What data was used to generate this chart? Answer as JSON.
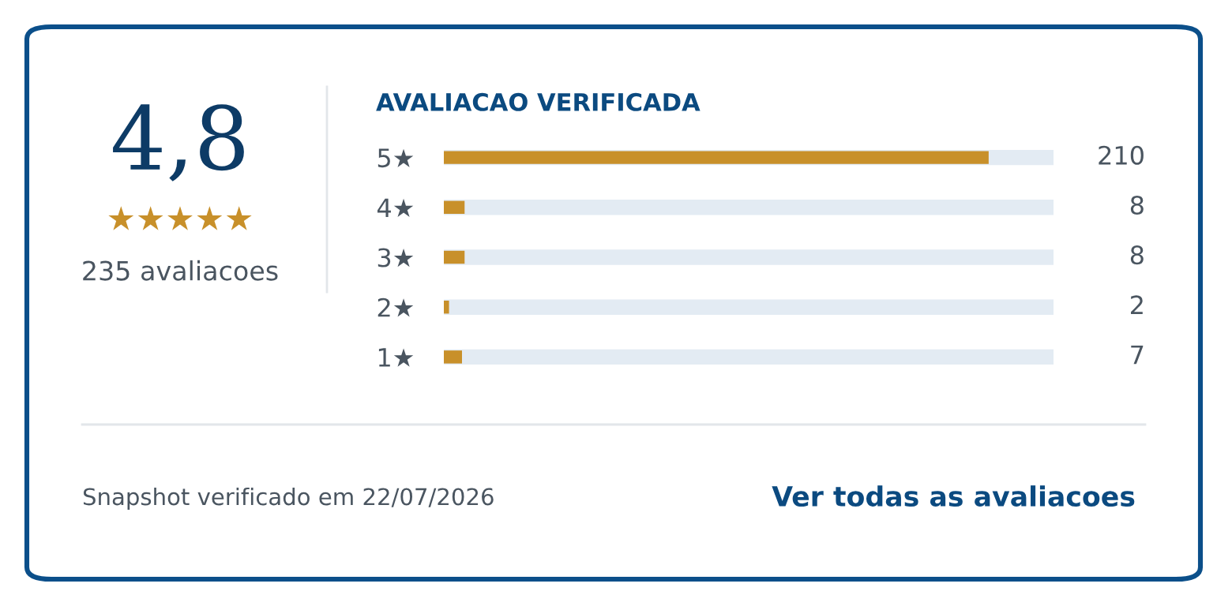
{
  "chart_data": {
    "type": "bar",
    "orientation": "horizontal",
    "title": "AVALIACAO VERIFICADA",
    "categories": [
      "5★",
      "4★",
      "3★",
      "2★",
      "1★"
    ],
    "values": [
      210,
      8,
      8,
      2,
      7
    ],
    "color": "#c8902a",
    "xlim": [
      0,
      235
    ],
    "tick_labels": "y",
    "data_labels": true,
    "grid": false,
    "legend": false,
    "annotations": [
      "4,8",
      "★★★★★",
      "235 avaliacoes",
      "Snapshot verificado em 22/07/2026",
      "Ver todas as avaliacoes"
    ]
  }
}
